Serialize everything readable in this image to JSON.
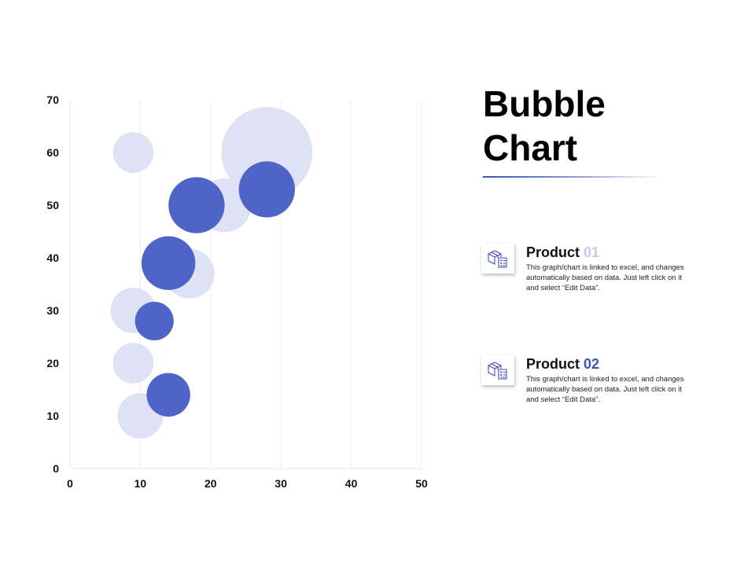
{
  "title": "Bubble Chart",
  "title_lines": [
    "Bubble",
    "Chart"
  ],
  "colors": {
    "series_light": "#dde2f4",
    "series_dark": "#4e64c6",
    "product_01_number": "#c5cbea",
    "product_02_number": "#3f51b5",
    "accent_line": "#3f51b5"
  },
  "products": [
    {
      "label": "Product",
      "number": "01",
      "icon": "box-with-checklist-icon",
      "description": "This graph/chart is linked to excel, and changes automatically based on data. Just left click on it and select “Edit Data”."
    },
    {
      "label": "Product",
      "number": "02",
      "icon": "box-with-checklist-icon",
      "description": "This graph/chart is linked to excel, and changes automatically based on data. Just left click on it and select “Edit Data”."
    }
  ],
  "chart_data": {
    "type": "scatter",
    "variant": "bubble",
    "title": "",
    "xlabel": "",
    "ylabel": "",
    "xlim": [
      0,
      50
    ],
    "ylim": [
      0,
      70
    ],
    "x_ticks": [
      "0",
      "10",
      "20",
      "30",
      "40",
      "50"
    ],
    "y_ticks": [
      "0",
      "10",
      "20",
      "30",
      "40",
      "50",
      "60",
      "70"
    ],
    "grid": "vertical",
    "legend": "none",
    "series": [
      {
        "color": "#dde2f4",
        "points": [
          {
            "x": 9,
            "y": 60,
            "size": 2
          },
          {
            "x": 28,
            "y": 60,
            "size": 10
          },
          {
            "x": 22,
            "y": 50,
            "size": 3.5
          },
          {
            "x": 17,
            "y": 37,
            "size": 3
          },
          {
            "x": 9,
            "y": 30,
            "size": 2.5
          },
          {
            "x": 9,
            "y": 20,
            "size": 2
          },
          {
            "x": 10,
            "y": 10,
            "size": 2.5
          }
        ]
      },
      {
        "color": "#4e64c6",
        "points": [
          {
            "x": 18,
            "y": 50,
            "size": 3.8
          },
          {
            "x": 28,
            "y": 53,
            "size": 3.8
          },
          {
            "x": 14,
            "y": 39,
            "size": 3.5
          },
          {
            "x": 12,
            "y": 28,
            "size": 1.8
          },
          {
            "x": 14,
            "y": 14,
            "size": 2.3
          }
        ]
      }
    ]
  }
}
